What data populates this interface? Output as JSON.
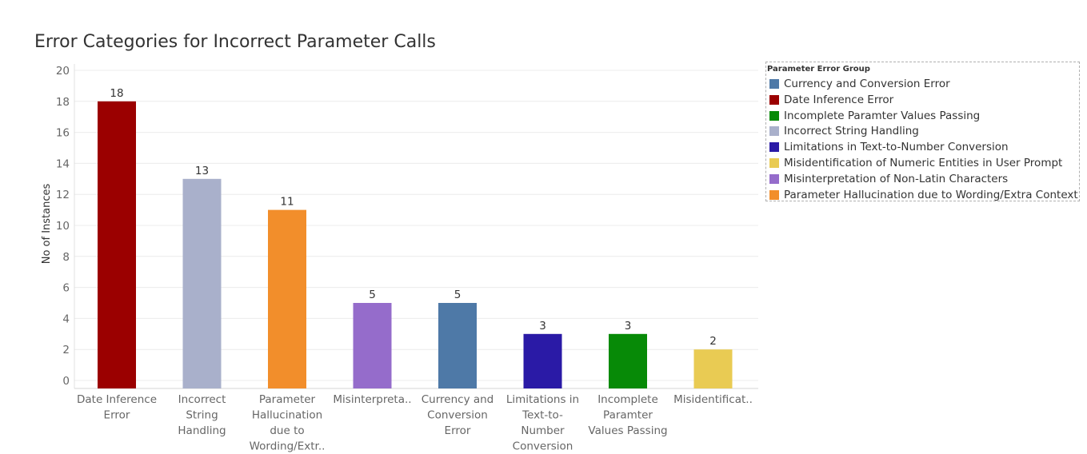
{
  "chart_data": {
    "type": "bar",
    "title": "Error Categories for Incorrect Parameter Calls",
    "xlabel": "",
    "ylabel": "No of Instances",
    "ylim": [
      0,
      20
    ],
    "yticks": [
      0,
      2,
      4,
      6,
      8,
      10,
      12,
      14,
      16,
      18,
      20
    ],
    "grid": true,
    "categories": [
      [
        "Date Inference",
        "Error"
      ],
      [
        "Incorrect",
        "String",
        "Handling"
      ],
      [
        "Parameter",
        "Hallucination",
        "due to",
        "Wording/Extr.."
      ],
      [
        "Misinterpreta.."
      ],
      [
        "Currency and",
        "Conversion",
        "Error"
      ],
      [
        "Limitations in",
        "Text-to-",
        "Number",
        "Conversion"
      ],
      [
        "Incomplete",
        "Paramter",
        "Values Passing"
      ],
      [
        "Misidentificat.."
      ]
    ],
    "values": [
      18,
      13,
      11,
      5,
      5,
      3,
      3,
      2
    ],
    "colors": [
      "#9b0000",
      "#a9b0cb",
      "#f28e2b",
      "#956ccb",
      "#4e79a7",
      "#2a1aa6",
      "#078a07",
      "#e9cb53"
    ],
    "legend": {
      "title": "Parameter Error Group",
      "placement": "right",
      "items": [
        {
          "label": "Currency and Conversion Error",
          "color": "#4e79a7"
        },
        {
          "label": "Date Inference Error",
          "color": "#9b0000"
        },
        {
          "label": "Incomplete Paramter Values Passing",
          "color": "#078a07"
        },
        {
          "label": "Incorrect String Handling",
          "color": "#a9b0cb"
        },
        {
          "label": "Limitations in Text-to-Number Conversion",
          "color": "#2a1aa6"
        },
        {
          "label": "Misidentification of Numeric Entities in User Prompt",
          "color": "#e9cb53"
        },
        {
          "label": "Misinterpretation of Non-Latin Characters",
          "color": "#956ccb"
        },
        {
          "label": "Parameter Hallucination due to Wording/Extra Context",
          "color": "#f28e2b"
        }
      ]
    }
  }
}
